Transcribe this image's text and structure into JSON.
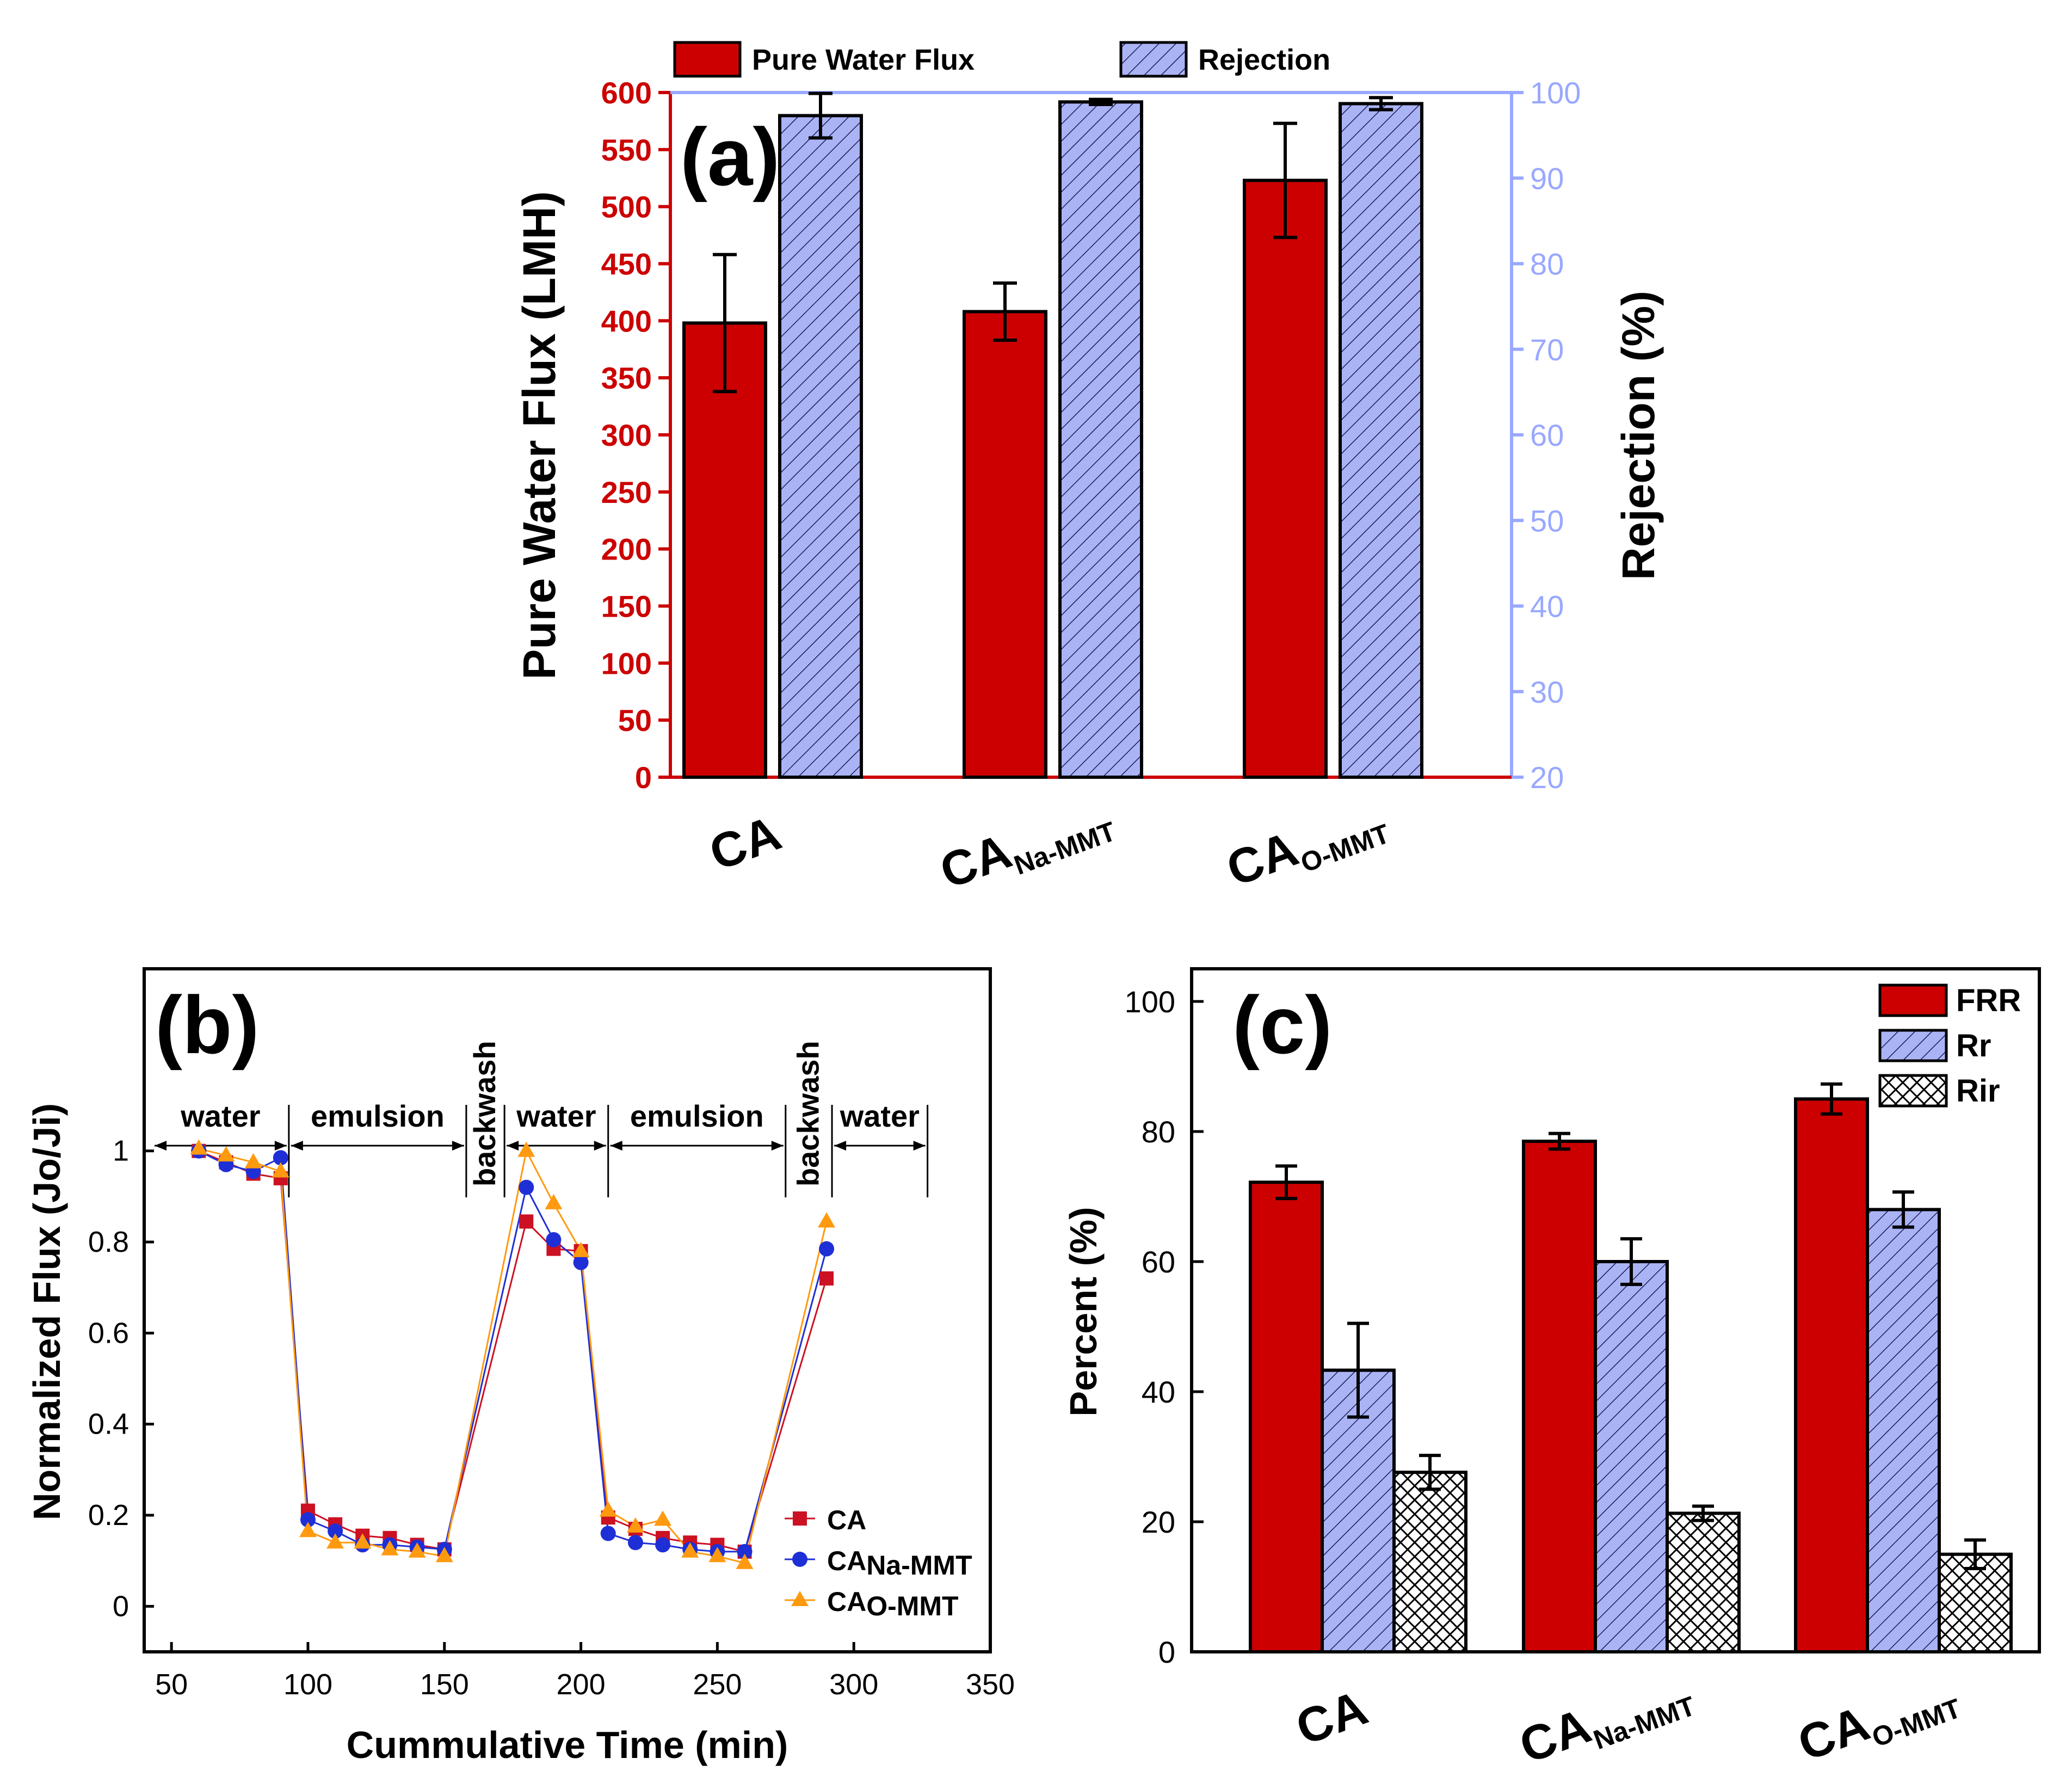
{
  "colors": {
    "flux": "#cc0000",
    "rejection": "#aab4f5",
    "rejection_axis": "#99a8ff",
    "series_ca": "#cc1122",
    "series_na": "#1f2fd6",
    "series_o": "#ff9a10",
    "cross": "#ffffff"
  },
  "chart_data": [
    {
      "panel": "(a)",
      "type": "bar",
      "categories": [
        {
          "main": "CA",
          "sub": ""
        },
        {
          "main": "CA",
          "sub": "Na-MMT"
        },
        {
          "main": "CA",
          "sub": "O-MMT"
        }
      ],
      "series": [
        {
          "name": "Pure Water Flux",
          "axis": "left",
          "values": [
            398,
            408,
            523
          ],
          "errors": [
            60,
            25,
            50
          ]
        },
        {
          "name": "Rejection",
          "axis": "right",
          "values": [
            97.3,
            98.9,
            98.7
          ],
          "errors": [
            2.6,
            0.3,
            0.7
          ]
        }
      ],
      "ylabel": "Pure Water Flux (LMH)",
      "ylim": [
        0,
        600
      ],
      "yticks": [
        "0",
        "50",
        "100",
        "150",
        "200",
        "250",
        "300",
        "350",
        "400",
        "450",
        "500",
        "550",
        "600"
      ],
      "y2label": "Rejection (%)",
      "y2lim": [
        20,
        100
      ],
      "y2ticks": [
        "20",
        "30",
        "40",
        "50",
        "60",
        "70",
        "80",
        "90",
        "100"
      ],
      "legend": "top"
    },
    {
      "panel": "(b)",
      "type": "line",
      "xlabel": "Cummulative Time (min)",
      "ylabel": "Normalized Flux (Jo/Ji)",
      "xlim": [
        40,
        350
      ],
      "ylim": [
        -0.1,
        1.4
      ],
      "xticks": [
        "50",
        "100",
        "150",
        "200",
        "250",
        "300",
        "350"
      ],
      "yticks": [
        "0",
        "0.2",
        "0.4",
        "0.6",
        "0.8",
        "1"
      ],
      "segments": [
        [
          60,
          90
        ],
        [
          100,
          150
        ],
        [
          180,
          200
        ],
        [
          210,
          260
        ],
        [
          290,
          290
        ]
      ],
      "series": [
        {
          "name": "CA",
          "sub": "",
          "marker": "square",
          "x": [
            60,
            70,
            80,
            90,
            100,
            110,
            120,
            130,
            140,
            150,
            180,
            190,
            200,
            210,
            220,
            230,
            240,
            250,
            260,
            290
          ],
          "y": [
            1.0,
            0.975,
            0.95,
            0.94,
            0.21,
            0.18,
            0.155,
            0.15,
            0.135,
            0.125,
            0.845,
            0.785,
            0.78,
            0.195,
            0.17,
            0.15,
            0.14,
            0.135,
            0.12,
            0.72
          ]
        },
        {
          "name": "CA",
          "sub": "Na-MMT",
          "marker": "circle",
          "x": [
            60,
            70,
            80,
            90,
            100,
            110,
            120,
            130,
            140,
            150,
            180,
            190,
            200,
            210,
            220,
            230,
            240,
            250,
            260,
            290
          ],
          "y": [
            1.0,
            0.97,
            0.955,
            0.985,
            0.19,
            0.165,
            0.135,
            0.135,
            0.13,
            0.125,
            0.92,
            0.805,
            0.755,
            0.16,
            0.14,
            0.135,
            0.125,
            0.12,
            0.12,
            0.785
          ]
        },
        {
          "name": "CA",
          "sub": "O-MMT",
          "marker": "triangle",
          "x": [
            60,
            70,
            80,
            90,
            100,
            110,
            120,
            130,
            140,
            150,
            180,
            190,
            200,
            210,
            220,
            230,
            240,
            250,
            260,
            290
          ],
          "y": [
            1.005,
            0.99,
            0.975,
            0.955,
            0.165,
            0.14,
            0.14,
            0.125,
            0.12,
            0.11,
            1.0,
            0.885,
            0.78,
            0.21,
            0.175,
            0.19,
            0.12,
            0.11,
            0.095,
            0.845
          ]
        }
      ],
      "annotations": [
        {
          "text": "water",
          "from": 43,
          "to": 93,
          "rotated": false
        },
        {
          "text": "emulsion",
          "from": 93,
          "to": 158,
          "rotated": false
        },
        {
          "text": "backwash",
          "from": 158,
          "to": 172,
          "rotated": true
        },
        {
          "text": "water",
          "from": 172,
          "to": 210,
          "rotated": false
        },
        {
          "text": "emulsion",
          "from": 210,
          "to": 275,
          "rotated": false
        },
        {
          "text": "backwash",
          "from": 275,
          "to": 292,
          "rotated": true
        },
        {
          "text": "water",
          "from": 292,
          "to": 327,
          "rotated": false
        }
      ],
      "legend": "bottom-right"
    },
    {
      "panel": "(c)",
      "type": "bar",
      "categories": [
        {
          "main": "CA",
          "sub": ""
        },
        {
          "main": "CA",
          "sub": "Na-MMT"
        },
        {
          "main": "CA",
          "sub": "O-MMT"
        }
      ],
      "series": [
        {
          "name": "FRR",
          "pattern": "solid",
          "values": [
            72.2,
            78.5,
            85.0
          ],
          "errors": [
            2.5,
            1.2,
            2.3
          ]
        },
        {
          "name": "Rr",
          "pattern": "hatch",
          "values": [
            43.3,
            60.0,
            68.0
          ],
          "errors": [
            7.2,
            3.5,
            2.7
          ]
        },
        {
          "name": "Rir",
          "pattern": "cross",
          "values": [
            27.6,
            21.3,
            15.0
          ],
          "errors": [
            2.6,
            1.1,
            2.2
          ]
        }
      ],
      "ylabel": "Percent (%)",
      "ylim": [
        0,
        100
      ],
      "yticks": [
        "0",
        "20",
        "40",
        "60",
        "80",
        "100"
      ],
      "legend": "top-right"
    }
  ]
}
